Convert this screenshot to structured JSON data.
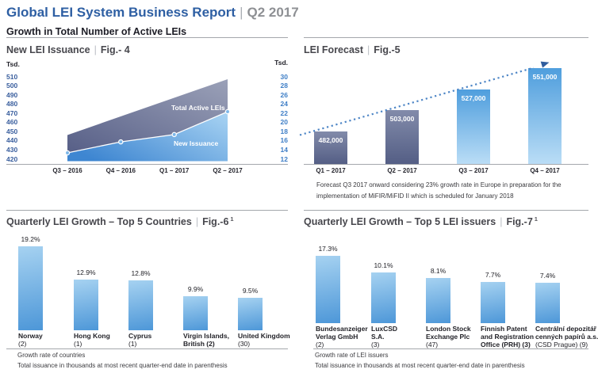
{
  "header": {
    "title": "Global LEI System Business Report",
    "separator": "|",
    "period": "Q2 2017",
    "subtitle": "Growth in Total Number of Active LEIs"
  },
  "colors": {
    "title_blue": "#2E5FA3",
    "title_gray": "#8E9094",
    "tick_left": "#3A5F9E",
    "tick_right": "#3E7EC6",
    "bar_dark_top": "#828BAA",
    "bar_dark_bottom": "#545E85",
    "bar_light_top": "#4F9EDD",
    "bar_light_bottom": "#BADDF6",
    "bar_sky_top": "#A6D2F1",
    "bar_sky_bottom": "#4D97D8",
    "area_dark_start": "#575F87",
    "area_dark_end": "#9BA1B8",
    "area_blue_start": "#3E86D1",
    "area_blue_end": "#A5D1F2",
    "marker_fill": "#7CB7E9",
    "trend_dot": "#4E86C6",
    "trend_arrow": "#2F5D9E"
  },
  "chart_data": [
    {
      "id": "fig4",
      "type": "area",
      "title": "New LEI Issuance",
      "fig_label": "Fig.- 4",
      "x_categories": [
        "Q3 – 2016",
        "Q4 – 2016",
        "Q1 – 2017",
        "Q2 – 2017"
      ],
      "left_axis": {
        "unit": "Tsd.",
        "ticks": [
          "510",
          "500",
          "490",
          "480",
          "470",
          "460",
          "450",
          "440",
          "430",
          "420"
        ],
        "min": 420,
        "max": 510
      },
      "right_axis": {
        "unit": "Tsd.",
        "ticks": [
          "30",
          "28",
          "26",
          "24",
          "22",
          "20",
          "18",
          "16",
          "14",
          "12"
        ],
        "min": 12,
        "max": 30
      },
      "series": [
        {
          "name": "Total Active LEIs",
          "axis": "left",
          "values": [
            446,
            467,
            487,
            507
          ]
        },
        {
          "name": "New Issuance",
          "axis": "right",
          "values": [
            13.3,
            15.7,
            17.3,
            22.3
          ]
        }
      ]
    },
    {
      "id": "fig5",
      "type": "bar",
      "title": "LEI Forecast",
      "fig_label": "Fig.-5",
      "categories": [
        "Q1 – 2017",
        "Q2 – 2017",
        "Q3 – 2017",
        "Q4 – 2017"
      ],
      "values": [
        482000,
        503000,
        527000,
        551000
      ],
      "value_labels": [
        "482,000",
        "503,000",
        "527,000",
        "551,000"
      ],
      "bar_styles": [
        "dark",
        "dark",
        "light",
        "light"
      ],
      "trend_line": true,
      "note_lines": [
        "Forecast Q3 2017 onward considering 23% growth rate in Europe in preparation for the",
        "implementation of MiFIR/MiFID II which is scheduled for January 2018"
      ]
    },
    {
      "id": "fig6",
      "type": "bar",
      "title": "Quarterly LEI Growth – Top 5 Countries",
      "fig_label": "Fig.-6",
      "fig_superscript": "1",
      "categories": [
        [
          "Norway",
          "(2)"
        ],
        [
          "Hong Kong",
          "(1)"
        ],
        [
          "Cyprus",
          "(1)"
        ],
        [
          "Virgin Islands,",
          "British (2)"
        ],
        [
          "United Kingdom",
          "(30)"
        ]
      ],
      "values": [
        19.2,
        12.9,
        12.8,
        9.9,
        9.5
      ],
      "value_labels": [
        "19.2%",
        "12.9%",
        "12.8%",
        "9.9%",
        "9.5%"
      ],
      "footnote_lines": [
        "Growth rate of countries",
        "Total issuance in thousands at most recent quarter-end date in parenthesis"
      ]
    },
    {
      "id": "fig7",
      "type": "bar",
      "title": "Quarterly LEI Growth – Top 5 LEI issuers",
      "fig_label": "Fig.-7",
      "fig_superscript": "1",
      "categories": [
        [
          "Bundesanzeiger",
          "Verlag GmbH",
          "(2)"
        ],
        [
          "LuxCSD",
          "S.A.",
          "(3)"
        ],
        [
          "London Stock",
          "Exchange Plc",
          "(47)"
        ],
        [
          "Finnish Patent",
          "and Registration",
          "Office (PRH) (3)"
        ],
        [
          "Centrální depozitář",
          "cenných papírů a.s.",
          "(CSD Prague) (9)"
        ]
      ],
      "values": [
        17.3,
        10.1,
        8.1,
        7.7,
        7.4
      ],
      "value_labels": [
        "17.3%",
        "10.1%",
        "8.1%",
        "7.7%",
        "7.4%"
      ],
      "footnote_lines": [
        "Growth rate of LEI issuers",
        "Total issuance in thousands at most recent quarter-end date in parenthesis"
      ]
    }
  ]
}
